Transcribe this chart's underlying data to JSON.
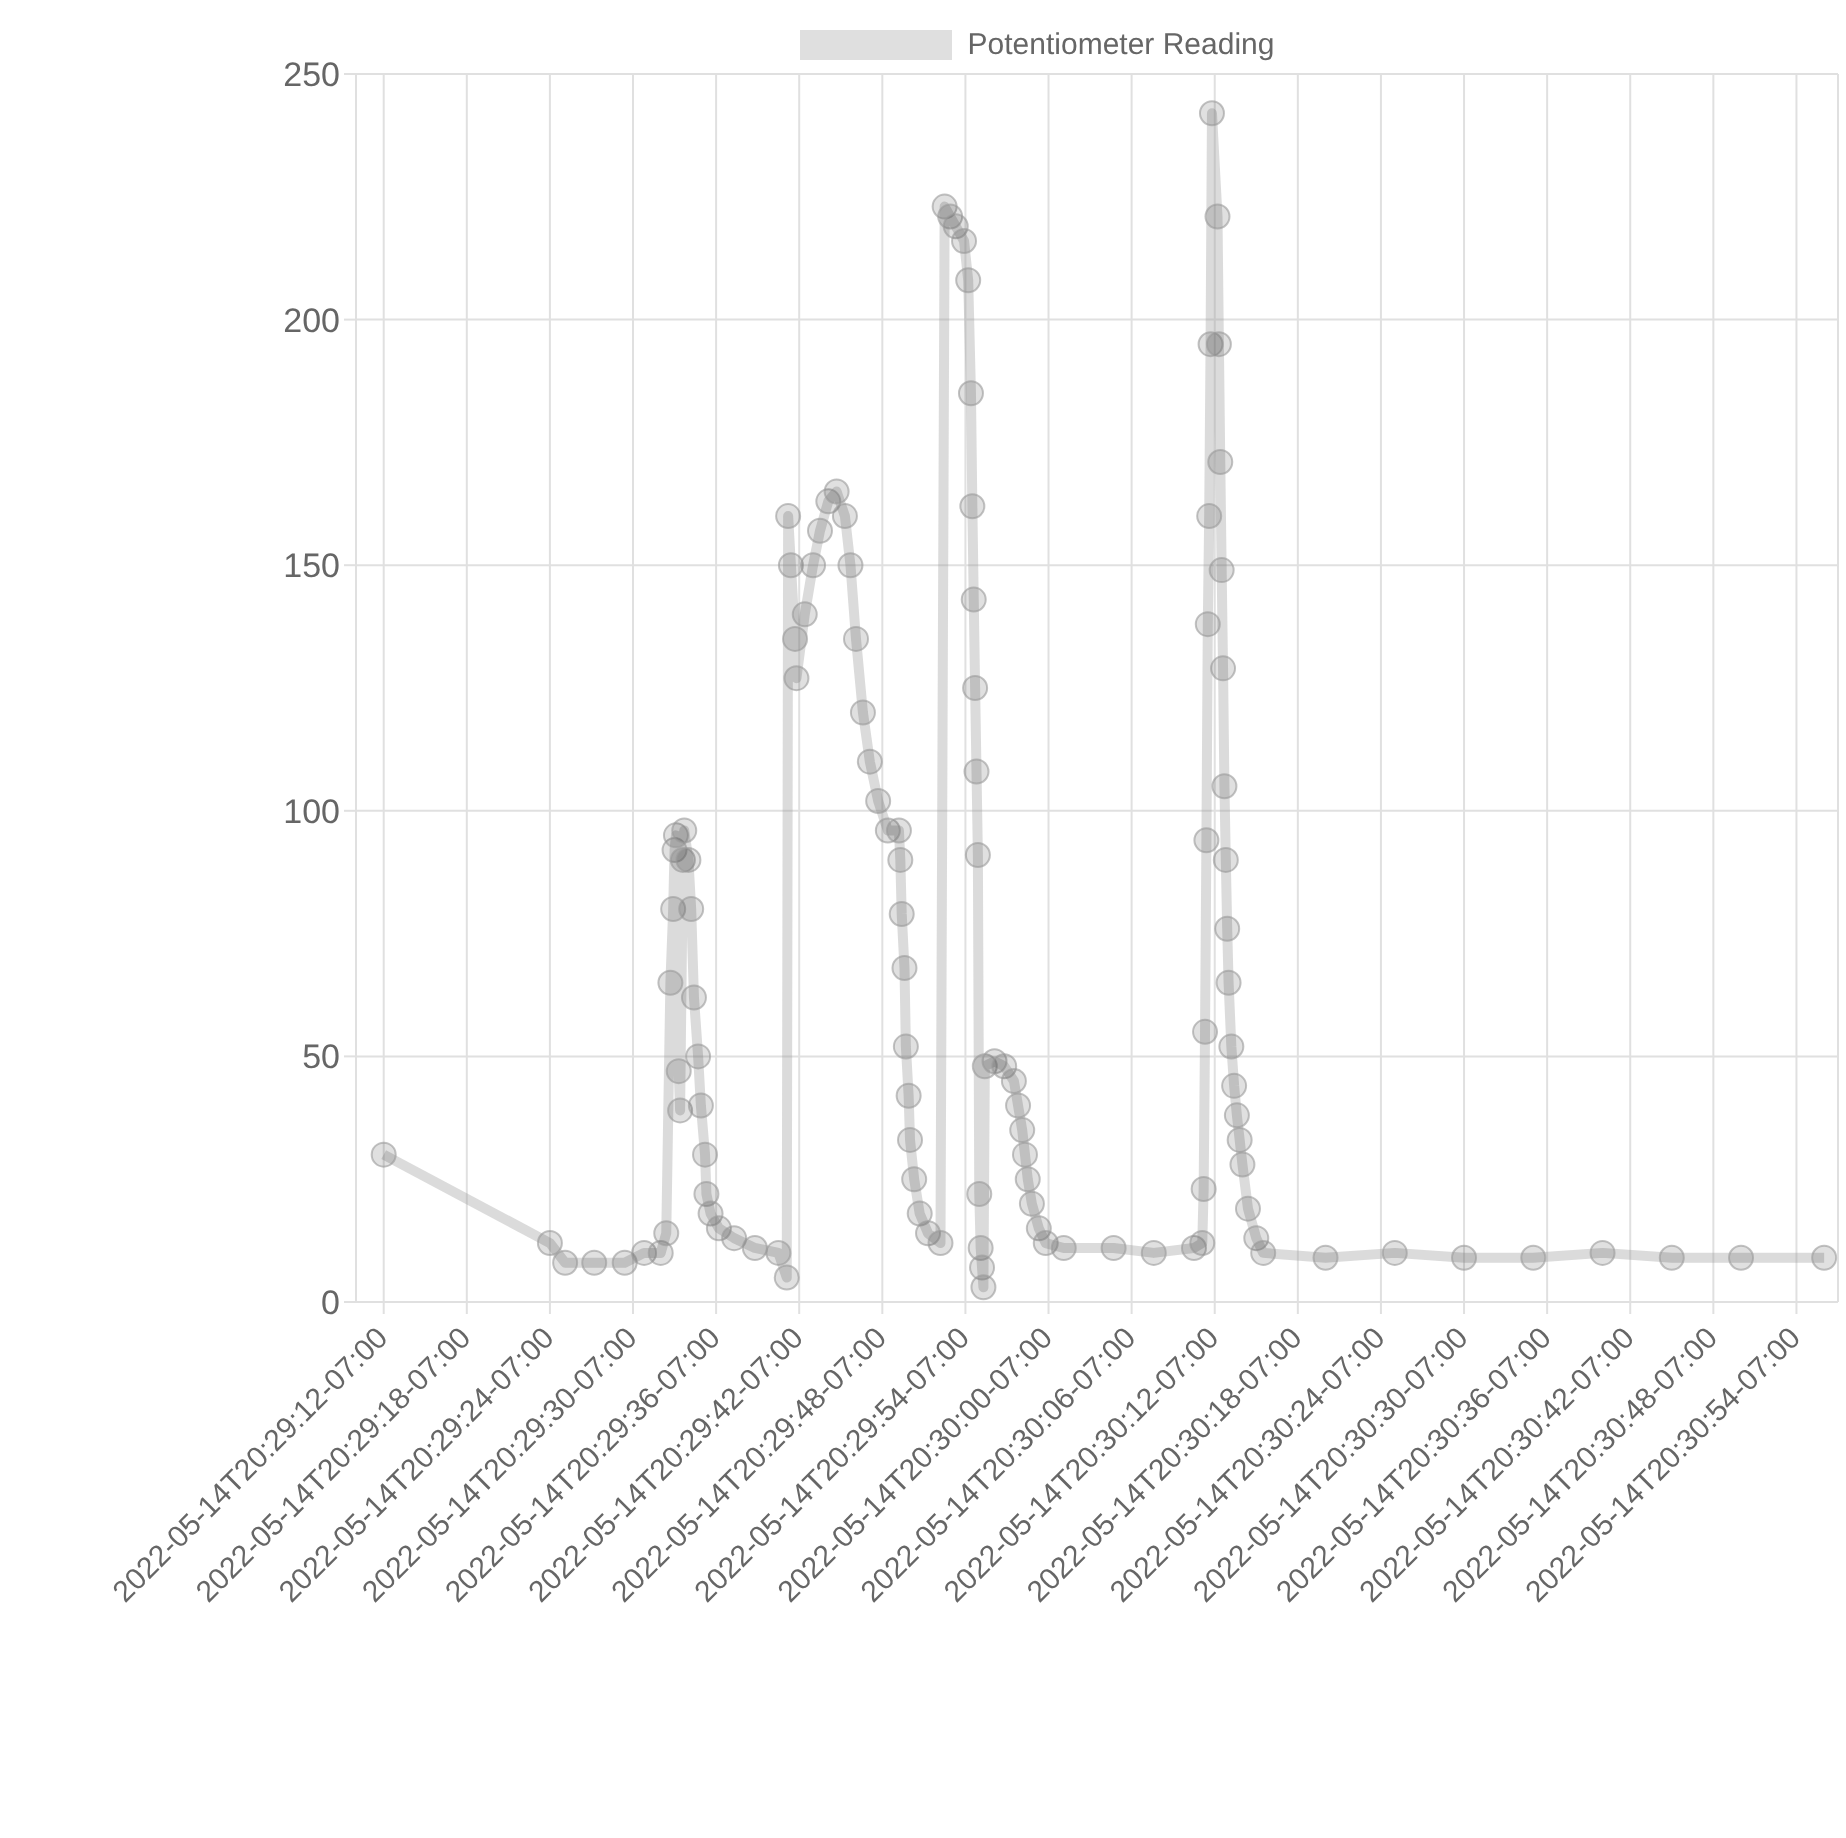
{
  "chart_data": {
    "type": "line",
    "x": [
      "2022-05-14T20:29:12",
      "2022-05-14T20:29:24",
      "2022-05-14T20:29:25.1",
      "2022-05-14T20:29:27.2",
      "2022-05-14T20:29:29.4",
      "2022-05-14T20:29:30.8",
      "2022-05-14T20:29:32",
      "2022-05-14T20:29:32.4",
      "2022-05-14T20:29:32.7",
      "2022-05-14T20:29:32.9",
      "2022-05-14T20:29:33",
      "2022-05-14T20:29:33.1",
      "2022-05-14T20:29:33.3",
      "2022-05-14T20:29:33.4",
      "2022-05-14T20:29:33.6",
      "2022-05-14T20:29:33.7",
      "2022-05-14T20:29:34",
      "2022-05-14T20:29:34.2",
      "2022-05-14T20:29:34.4",
      "2022-05-14T20:29:34.7",
      "2022-05-14T20:29:34.9",
      "2022-05-14T20:29:35.2",
      "2022-05-14T20:29:35.3",
      "2022-05-14T20:29:35.6",
      "2022-05-14T20:29:36.2",
      "2022-05-14T20:29:37.3",
      "2022-05-14T20:29:38.8",
      "2022-05-14T20:29:40.5",
      "2022-05-14T20:29:41.1",
      "2022-05-14T20:29:41.2",
      "2022-05-14T20:29:41.4",
      "2022-05-14T20:29:41.7",
      "2022-05-14T20:29:41.8",
      "2022-05-14T20:29:42.4",
      "2022-05-14T20:29:43",
      "2022-05-14T20:29:43.5",
      "2022-05-14T20:29:44.1",
      "2022-05-14T20:29:44.7",
      "2022-05-14T20:29:45.3",
      "2022-05-14T20:29:45.7",
      "2022-05-14T20:29:46.1",
      "2022-05-14T20:29:46.6",
      "2022-05-14T20:29:47.1",
      "2022-05-14T20:29:47.7",
      "2022-05-14T20:29:48.4",
      "2022-05-14T20:29:49.2",
      "2022-05-14T20:29:49.3",
      "2022-05-14T20:29:49.4",
      "2022-05-14T20:29:49.6",
      "2022-05-14T20:29:49.7",
      "2022-05-14T20:29:49.9",
      "2022-05-14T20:29:50",
      "2022-05-14T20:29:50.3",
      "2022-05-14T20:29:50.7",
      "2022-05-14T20:29:51.3",
      "2022-05-14T20:29:52.2",
      "2022-05-14T20:29:52.5",
      "2022-05-14T20:29:52.9",
      "2022-05-14T20:29:53.3",
      "2022-05-14T20:29:53.9",
      "2022-05-14T20:29:54.2",
      "2022-05-14T20:29:54.4",
      "2022-05-14T20:29:54.5",
      "2022-05-14T20:29:54.6",
      "2022-05-14T20:29:54.7",
      "2022-05-14T20:29:54.8",
      "2022-05-14T20:29:54.9",
      "2022-05-14T20:29:55",
      "2022-05-14T20:29:55.1",
      "2022-05-14T20:29:55.2",
      "2022-05-14T20:29:55.3",
      "2022-05-14T20:29:55.4",
      "2022-05-14T20:29:56.1",
      "2022-05-14T20:29:56.8",
      "2022-05-14T20:29:57.5",
      "2022-05-14T20:29:57.8",
      "2022-05-14T20:29:58.1",
      "2022-05-14T20:29:58.3",
      "2022-05-14T20:29:58.5",
      "2022-05-14T20:29:58.8",
      "2022-05-14T20:29:59.3",
      "2022-05-14T20:29:59.8",
      "2022-05-14T20:30:01.1",
      "2022-05-14T20:30:04.7",
      "2022-05-14T20:30:07.6",
      "2022-05-14T20:30:10.5",
      "2022-05-14T20:30:11.1",
      "2022-05-14T20:30:11.2",
      "2022-05-14T20:30:11.3",
      "2022-05-14T20:30:11.4",
      "2022-05-14T20:30:11.5",
      "2022-05-14T20:30:11.6",
      "2022-05-14T20:30:11.7",
      "2022-05-14T20:30:11.8",
      "2022-05-14T20:30:12.2",
      "2022-05-14T20:30:12.3",
      "2022-05-14T20:30:12.4",
      "2022-05-14T20:30:12.5",
      "2022-05-14T20:30:12.6",
      "2022-05-14T20:30:12.7",
      "2022-05-14T20:30:12.8",
      "2022-05-14T20:30:12.9",
      "2022-05-14T20:30:13",
      "2022-05-14T20:30:13.2",
      "2022-05-14T20:30:13.4",
      "2022-05-14T20:30:13.6",
      "2022-05-14T20:30:13.8",
      "2022-05-14T20:30:14",
      "2022-05-14T20:30:14.4",
      "2022-05-14T20:30:15",
      "2022-05-14T20:30:15.5",
      "2022-05-14T20:30:20",
      "2022-05-14T20:30:25",
      "2022-05-14T20:30:30",
      "2022-05-14T20:30:35",
      "2022-05-14T20:30:40",
      "2022-05-14T20:30:45",
      "2022-05-14T20:30:50",
      "2022-05-14T20:30:56"
    ],
    "series": [
      {
        "name": "Potentiometer Reading",
        "color": "#999999",
        "values": [
          30,
          12,
          8,
          8,
          8,
          10,
          10,
          14,
          65,
          80,
          92,
          95,
          47,
          39,
          90,
          96,
          90,
          80,
          62,
          50,
          40,
          30,
          22,
          18,
          15,
          13,
          11,
          10,
          5,
          160,
          150,
          135,
          127,
          140,
          150,
          157,
          163,
          165,
          160,
          150,
          135,
          120,
          110,
          102,
          96,
          96,
          90,
          79,
          68,
          52,
          42,
          33,
          25,
          18,
          14,
          12,
          223,
          221,
          219,
          216,
          208,
          185,
          162,
          143,
          125,
          108,
          91,
          22,
          11,
          7,
          3,
          48,
          49,
          48,
          45,
          40,
          35,
          30,
          25,
          20,
          15,
          12,
          11,
          11,
          10,
          11,
          12,
          23,
          55,
          94,
          138,
          160,
          195,
          242,
          221,
          195,
          171,
          149,
          129,
          105,
          90,
          76,
          65,
          52,
          44,
          38,
          33,
          28,
          19,
          13,
          10,
          9,
          10,
          9,
          9,
          10,
          9,
          9,
          9
        ]
      }
    ],
    "xlim": [
      "2022-05-14T20:29:10",
      "2022-05-14T20:30:57"
    ],
    "xticks": [
      {
        "value": "2022-05-14T20:29:12",
        "label": "2022-05-14T20:29:12-07:00"
      },
      {
        "value": "2022-05-14T20:29:18",
        "label": "2022-05-14T20:29:18-07:00"
      },
      {
        "value": "2022-05-14T20:29:24",
        "label": "2022-05-14T20:29:24-07:00"
      },
      {
        "value": "2022-05-14T20:29:30",
        "label": "2022-05-14T20:29:30-07:00"
      },
      {
        "value": "2022-05-14T20:29:36",
        "label": "2022-05-14T20:29:36-07:00"
      },
      {
        "value": "2022-05-14T20:29:42",
        "label": "2022-05-14T20:29:42-07:00"
      },
      {
        "value": "2022-05-14T20:29:48",
        "label": "2022-05-14T20:29:48-07:00"
      },
      {
        "value": "2022-05-14T20:29:54",
        "label": "2022-05-14T20:29:54-07:00"
      },
      {
        "value": "2022-05-14T20:30:00",
        "label": "2022-05-14T20:30:00-07:00"
      },
      {
        "value": "2022-05-14T20:30:06",
        "label": "2022-05-14T20:30:06-07:00"
      },
      {
        "value": "2022-05-14T20:30:12",
        "label": "2022-05-14T20:30:12-07:00"
      },
      {
        "value": "2022-05-14T20:30:18",
        "label": "2022-05-14T20:30:18-07:00"
      },
      {
        "value": "2022-05-14T20:30:24",
        "label": "2022-05-14T20:30:24-07:00"
      },
      {
        "value": "2022-05-14T20:30:30",
        "label": "2022-05-14T20:30:30-07:00"
      },
      {
        "value": "2022-05-14T20:30:36",
        "label": "2022-05-14T20:30:36-07:00"
      },
      {
        "value": "2022-05-14T20:30:42",
        "label": "2022-05-14T20:30:42-07:00"
      },
      {
        "value": "2022-05-14T20:30:48",
        "label": "2022-05-14T20:30:48-07:00"
      },
      {
        "value": "2022-05-14T20:30:54",
        "label": "2022-05-14T20:30:54-07:00"
      }
    ],
    "ylim": [
      0,
      250
    ],
    "yticks": [
      0,
      50,
      100,
      150,
      200,
      250
    ],
    "grid": true,
    "legend": "top",
    "marker": "circle",
    "line_style": "solid"
  }
}
